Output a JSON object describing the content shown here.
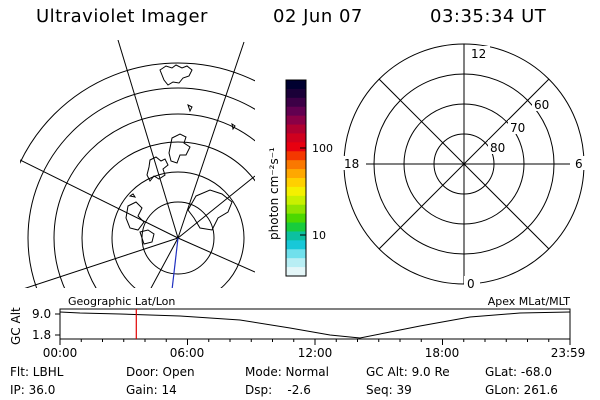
{
  "header": {
    "title": "Ultraviolet Imager",
    "date": "02 Jun 07",
    "time": "03:35:34 UT"
  },
  "colorbar": {
    "unit_label": "photon cm⁻²s⁻¹",
    "ticks": [
      "100",
      "10"
    ],
    "colors": [
      "#000030",
      "#1a0038",
      "#3c0046",
      "#620050",
      "#8a0046",
      "#b00030",
      "#d0001e",
      "#e80010",
      "#f43800",
      "#fa7800",
      "#ffa800",
      "#ffd000",
      "#f4f000",
      "#c8f000",
      "#90e400",
      "#4cd800",
      "#18cc3c",
      "#0cc0a0",
      "#18c8d8",
      "#70e0ec",
      "#b8eef4",
      "#e4f6f8"
    ]
  },
  "polar_plot": {
    "lat_labels": [
      "60",
      "70",
      "80"
    ],
    "mlt_labels": [
      "12",
      "18",
      "6",
      "0"
    ]
  },
  "strip": {
    "y_axis_label": "GC Alt",
    "y_ticks": [
      "9.0",
      "1.8"
    ],
    "left_label": "Geographic Lat/Lon",
    "right_label": "Apex MLat/MLT",
    "x_ticks": [
      "00:00",
      "06:00",
      "12:00",
      "18:00",
      "23:59"
    ],
    "marker_time_hours": 3.59
  },
  "info": {
    "flt": "Flt: LBHL",
    "ip": "IP: 36.0",
    "door": "Door: Open",
    "gain": "Gain: 14",
    "mode": "Mode: Normal",
    "dsp": "Dsp:    -2.6",
    "gcalt": "GC Alt: 9.0 Re",
    "seq": "Seq: 39",
    "glat": "GLat: -68.0",
    "glon": "GLon: 261.6"
  }
}
